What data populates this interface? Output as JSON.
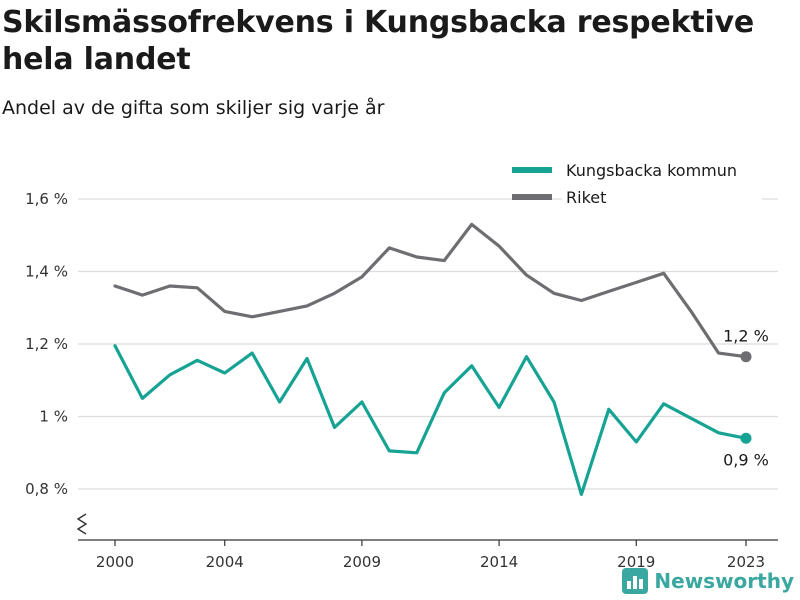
{
  "header": {
    "title": "Skilsmässofrekvens i Kungsbacka respektive hela landet",
    "subtitle": "Andel av de gifta som skiljer sig varje år"
  },
  "brand": {
    "name": "Newsworthy",
    "icon": "bar-chart-logo-icon",
    "color": "#3aa7a0"
  },
  "chart_data": {
    "type": "line",
    "title": "Skilsmässofrekvens i Kungsbacka respektive hela landet",
    "subtitle": "Andel av de gifta som skiljer sig varje år",
    "x": [
      2000,
      2001,
      2002,
      2003,
      2004,
      2005,
      2006,
      2007,
      2008,
      2009,
      2010,
      2011,
      2012,
      2013,
      2014,
      2015,
      2016,
      2017,
      2018,
      2019,
      2020,
      2021,
      2022,
      2023
    ],
    "x_ticks": [
      2000,
      2004,
      2009,
      2014,
      2019,
      2023
    ],
    "x_tick_labels": [
      "2000",
      "2004",
      "2009",
      "2014",
      "2019",
      "2023"
    ],
    "y_ticks": [
      0.8,
      1.0,
      1.2,
      1.4,
      1.6
    ],
    "y_tick_labels": [
      "0,8 %",
      "1 %",
      "1,2 %",
      "1,4 %",
      "1,6 %"
    ],
    "ylim": [
      0.65,
      1.65
    ],
    "y_axis_break": true,
    "grid": "horizontal",
    "legend_position": "top-right",
    "series": [
      {
        "name": "Kungsbacka kommun",
        "color": "#16a394",
        "values": [
          1.195,
          1.05,
          1.115,
          1.155,
          1.12,
          1.175,
          1.04,
          1.16,
          0.97,
          1.04,
          0.905,
          0.9,
          1.065,
          1.14,
          1.025,
          1.165,
          1.04,
          0.785,
          1.02,
          0.93,
          1.035,
          0.995,
          0.955,
          0.94
        ],
        "end_label": "0,9 %"
      },
      {
        "name": "Riket",
        "color": "#6e6e72",
        "values": [
          1.36,
          1.335,
          1.36,
          1.355,
          1.29,
          1.275,
          1.29,
          1.305,
          1.34,
          1.385,
          1.465,
          1.44,
          1.43,
          1.53,
          1.47,
          1.39,
          1.34,
          1.32,
          1.345,
          1.37,
          1.395,
          1.29,
          1.175,
          1.165
        ],
        "end_label": "1,2 %"
      }
    ]
  }
}
